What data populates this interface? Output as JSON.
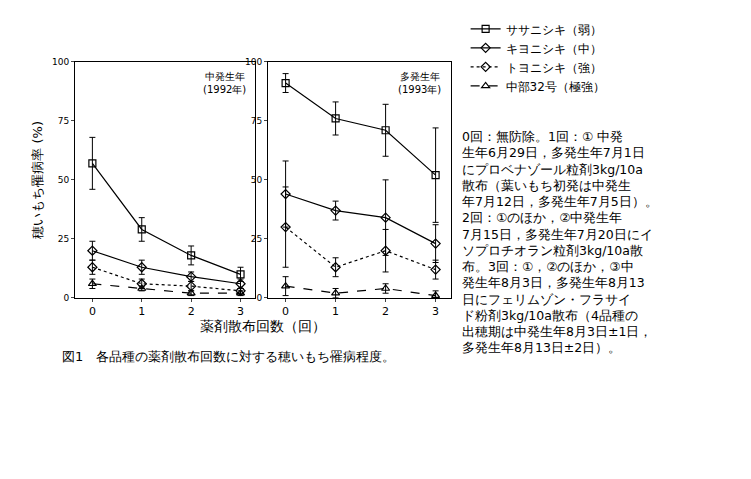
{
  "chart_data": [
    {
      "type": "line",
      "label": [
        "中発生年",
        "(1992年)"
      ],
      "ylabel": "穂いもち罹病率 (%)",
      "x": [
        0,
        1,
        2,
        3
      ],
      "xlim": [
        -0.35,
        3.3
      ],
      "xticks": [
        0,
        1,
        2,
        3
      ],
      "ylim": [
        0,
        100
      ],
      "yticks": [
        0,
        25,
        50,
        75,
        100
      ],
      "grid": false,
      "series": [
        {
          "name": "ササニシキ（弱）",
          "color": "#000000",
          "marker": "square-open",
          "line_style": "solid",
          "values": [
            57,
            29,
            18,
            10
          ],
          "error": [
            11,
            5,
            4,
            3
          ]
        },
        {
          "name": "キヨニシキ（中）",
          "color": "#000000",
          "marker": "diamond-open",
          "line_style": "solid",
          "values": [
            20,
            13,
            9,
            6
          ],
          "error": [
            4,
            3,
            2,
            2
          ]
        },
        {
          "name": "トヨニシキ（強）",
          "color": "#000000",
          "marker": "diamond-open",
          "line_style": "dot",
          "values": [
            13,
            6,
            5,
            3
          ],
          "error": [
            3,
            2,
            2,
            1
          ]
        },
        {
          "name": "中部32号（極強）",
          "color": "#000000",
          "marker": "triangle-up-open",
          "line_style": "dash",
          "values": [
            6,
            4,
            2,
            2
          ],
          "error": [
            2,
            1,
            1,
            1
          ]
        }
      ]
    },
    {
      "type": "line",
      "label": [
        "多発生年",
        "(1993年)"
      ],
      "x": [
        0,
        1,
        2,
        3
      ],
      "xlim": [
        -0.35,
        3.3
      ],
      "xticks": [
        0,
        1,
        2,
        3
      ],
      "ylim": [
        0,
        100
      ],
      "yticks": [
        0,
        25,
        50,
        75,
        100
      ],
      "grid": false,
      "series": [
        {
          "name": "ササニシキ（弱）",
          "color": "#000000",
          "marker": "square-open",
          "line_style": "solid",
          "values": [
            91,
            76,
            71,
            52
          ],
          "error": [
            4,
            7,
            11,
            20
          ]
        },
        {
          "name": "キヨニシキ（中）",
          "color": "#000000",
          "marker": "diamond-open",
          "line_style": "solid",
          "values": [
            44,
            37,
            34,
            23
          ],
          "error": [
            14,
            4,
            16,
            8
          ]
        },
        {
          "name": "トヨニシキ（強）",
          "color": "#000000",
          "marker": "diamond-open",
          "line_style": "dot",
          "values": [
            30,
            13,
            20,
            12
          ],
          "error": [
            17,
            4,
            9,
            4
          ]
        },
        {
          "name": "中部32号（極強）",
          "color": "#000000",
          "marker": "triangle-up-open",
          "line_style": "dash",
          "values": [
            5,
            2,
            4,
            1
          ],
          "error": [
            4,
            2,
            2,
            2
          ]
        }
      ]
    }
  ],
  "xlabel": "薬剤散布回数（回）",
  "caption": "図1　各品種の薬剤散布回数に対する穂いもち罹病程度。",
  "notes": [
    "0回：無防除。1回：① 中発",
    "生年6月29日，多発生年7月1日",
    "にプロベナゾール粒剤3kg/10a",
    "散布（葉いもち初発は中発生",
    "年7月12日，多発生年7月5日）。",
    "2回：①のほか，②中発生年",
    "7月15日，多発生年7月20日にイ",
    "ソプロチオラン粒剤3kg/10a散",
    "布。3回：①，②のほか，③中",
    "発生年8月3日，多発生年8月13",
    "日にフェリムゾン・フラサイ",
    "ド粉剤3kg/10a散布（4品種の",
    "出穂期は中発生年8月3日±1日，",
    "多発生年8月13日±2日）。"
  ]
}
